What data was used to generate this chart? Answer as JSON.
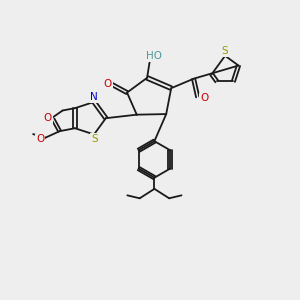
{
  "bg_color": "#eeeeee",
  "bond_color": "#1a1a1a",
  "S_color": "#999900",
  "N_color": "#0000cc",
  "O_color": "#cc0000",
  "HO_color": "#4a9999",
  "fig_w": 3.0,
  "fig_h": 3.0,
  "dpi": 100,
  "xlim": [
    0,
    10
  ],
  "ylim": [
    0,
    10
  ]
}
